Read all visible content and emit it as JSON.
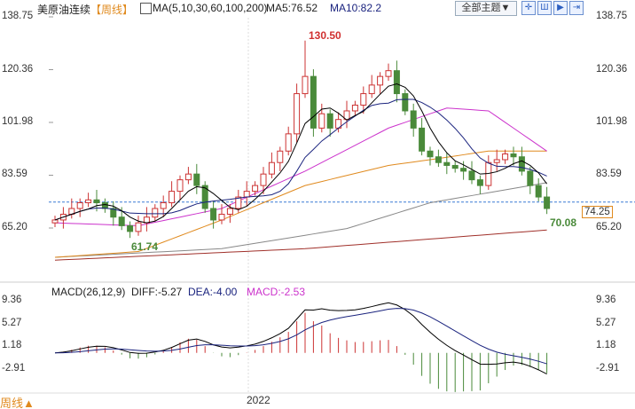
{
  "header": {
    "title": "美原油连续",
    "period": "【周线】",
    "ma_label": "MA(5,10,30,60,100,200)",
    "ma5": "MA5:76.52",
    "ma10": "MA10:82.2",
    "theme_button": "全部主题▼",
    "tool_icons": [
      "crosshair-icon",
      "chart-type-icon",
      "playback-icon",
      "exit-icon"
    ]
  },
  "price_axis": {
    "ticks": [
      "138.75",
      "120.36",
      "101.98",
      "83.59",
      "65.20"
    ],
    "last_price": "74.25"
  },
  "annotations": {
    "high": "130.50",
    "low": "61.74",
    "recent_low": "70.08"
  },
  "macd": {
    "label": "MACD(26,12,9)",
    "diff": "DIFF:-5.27",
    "dea": "DEA:-4.00",
    "macd": "MACD:-2.53",
    "ticks": [
      "9.36",
      "5.27",
      "1.18",
      "-2.91"
    ]
  },
  "footer": {
    "period": "周线▲",
    "year": "2022"
  },
  "colors": {
    "up": "#cc3333",
    "down": "#4a8a3a",
    "ma5": "#000000",
    "ma10": "#1a237e",
    "ma30": "#cc33cc",
    "ma60": "#e08a1e",
    "ma100": "#888888",
    "ma200": "#a0302a"
  },
  "chart_data": {
    "type": "candlestick",
    "closes": [
      68,
      70,
      72,
      74,
      75,
      74,
      72,
      69,
      66,
      64,
      67,
      69,
      72,
      74,
      78,
      82,
      84,
      80,
      72,
      68,
      70,
      72,
      76,
      78,
      80,
      84,
      88,
      92,
      98,
      112,
      118,
      100,
      105,
      100,
      103,
      106,
      108,
      112,
      115,
      118,
      120,
      112,
      106,
      100,
      92,
      90,
      88,
      87,
      86,
      85,
      82,
      80,
      88,
      89,
      91,
      90,
      85,
      80,
      76,
      72
    ],
    "high_point": {
      "index": 30,
      "value": 130.5
    },
    "low_point": {
      "index": 9,
      "value": 61.74
    },
    "last_low": 70.08,
    "ma_long": {
      "ma30": [
        [
          0,
          67
        ],
        [
          10,
          66
        ],
        [
          20,
          72
        ],
        [
          30,
          85
        ],
        [
          40,
          100
        ],
        [
          47,
          107
        ],
        [
          52,
          106
        ],
        [
          59,
          92
        ]
      ],
      "ma60": [
        [
          0,
          55
        ],
        [
          10,
          57
        ],
        [
          20,
          68
        ],
        [
          30,
          80
        ],
        [
          40,
          87
        ],
        [
          45,
          89
        ],
        [
          52,
          92
        ],
        [
          59,
          92
        ]
      ],
      "ma100": [
        [
          0,
          55
        ],
        [
          20,
          58
        ],
        [
          35,
          65
        ],
        [
          45,
          74
        ],
        [
          59,
          81
        ]
      ],
      "ma200": [
        [
          0,
          54
        ],
        [
          30,
          58
        ],
        [
          59,
          64.5
        ]
      ]
    },
    "price_range": [
      65.2,
      138.75
    ],
    "macd_range": [
      -2.91,
      9.36
    ]
  }
}
